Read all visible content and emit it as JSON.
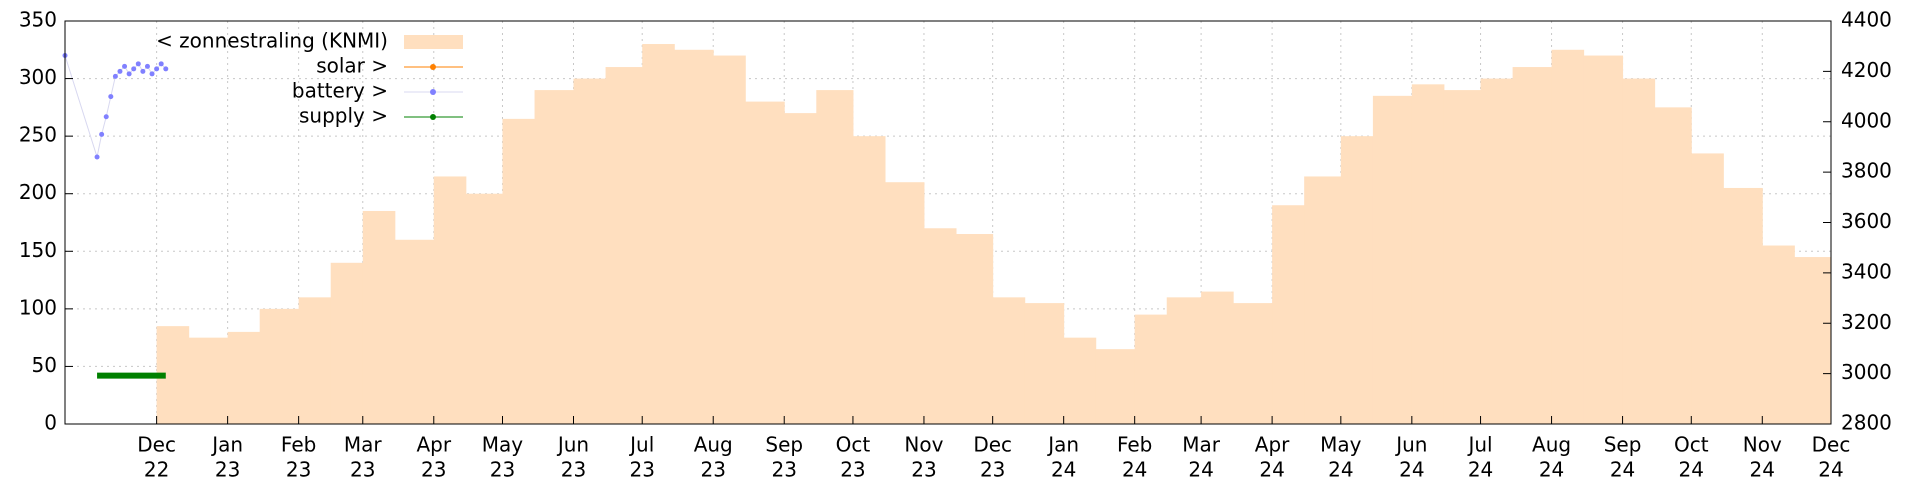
{
  "chart_data": {
    "type": "combo",
    "xlim": [
      "2022-10-22",
      "2024-12-01"
    ],
    "xticks": [
      {
        "value": "2022-12-01",
        "label": [
          "Dec",
          "22"
        ]
      },
      {
        "value": "2023-01-01",
        "label": [
          "Jan",
          "23"
        ]
      },
      {
        "value": "2023-02-01",
        "label": [
          "Feb",
          "23"
        ]
      },
      {
        "value": "2023-03-01",
        "label": [
          "Mar",
          "23"
        ]
      },
      {
        "value": "2023-04-01",
        "label": [
          "Apr",
          "23"
        ]
      },
      {
        "value": "2023-05-01",
        "label": [
          "May",
          "23"
        ]
      },
      {
        "value": "2023-06-01",
        "label": [
          "Jun",
          "23"
        ]
      },
      {
        "value": "2023-07-01",
        "label": [
          "Jul",
          "23"
        ]
      },
      {
        "value": "2023-08-01",
        "label": [
          "Aug",
          "23"
        ]
      },
      {
        "value": "2023-09-01",
        "label": [
          "Sep",
          "23"
        ]
      },
      {
        "value": "2023-10-01",
        "label": [
          "Oct",
          "23"
        ]
      },
      {
        "value": "2023-11-01",
        "label": [
          "Nov",
          "23"
        ]
      },
      {
        "value": "2023-12-01",
        "label": [
          "Dec",
          "23"
        ]
      },
      {
        "value": "2024-01-01",
        "label": [
          "Jan",
          "24"
        ]
      },
      {
        "value": "2024-02-01",
        "label": [
          "Feb",
          "24"
        ]
      },
      {
        "value": "2024-03-01",
        "label": [
          "Mar",
          "24"
        ]
      },
      {
        "value": "2024-04-01",
        "label": [
          "Apr",
          "24"
        ]
      },
      {
        "value": "2024-05-01",
        "label": [
          "May",
          "24"
        ]
      },
      {
        "value": "2024-06-01",
        "label": [
          "Jun",
          "24"
        ]
      },
      {
        "value": "2024-07-01",
        "label": [
          "Jul",
          "24"
        ]
      },
      {
        "value": "2024-08-01",
        "label": [
          "Aug",
          "24"
        ]
      },
      {
        "value": "2024-09-01",
        "label": [
          "Sep",
          "24"
        ]
      },
      {
        "value": "2024-10-01",
        "label": [
          "Oct",
          "24"
        ]
      },
      {
        "value": "2024-11-01",
        "label": [
          "Nov",
          "24"
        ]
      },
      {
        "value": "2024-12-01",
        "label": [
          "Dec",
          "24"
        ]
      }
    ],
    "ylim": [
      0,
      350
    ],
    "yticks": [
      0,
      50,
      100,
      150,
      200,
      250,
      300,
      350
    ],
    "ytick_color": "#ff8000",
    "y2lim": [
      2800,
      4400
    ],
    "y2ticks": [
      2800,
      3000,
      3200,
      3400,
      3600,
      3800,
      4000,
      4200,
      4400
    ],
    "grid": true,
    "series": [
      {
        "name": "< zonnestraling (KNMI)",
        "type": "area",
        "color": "#ffdfbf",
        "x": [
          "2022-12-01",
          "2022-12-15",
          "2023-01-01",
          "2023-01-15",
          "2023-02-01",
          "2023-02-15",
          "2023-03-01",
          "2023-03-15",
          "2023-04-01",
          "2023-04-15",
          "2023-05-01",
          "2023-05-15",
          "2023-06-01",
          "2023-06-15",
          "2023-07-01",
          "2023-07-15",
          "2023-08-01",
          "2023-08-15",
          "2023-09-01",
          "2023-09-15",
          "2023-10-01",
          "2023-10-15",
          "2023-11-01",
          "2023-11-15",
          "2023-12-01",
          "2023-12-15",
          "2024-01-01",
          "2024-01-15",
          "2024-02-01",
          "2024-02-15",
          "2024-03-01",
          "2024-03-15",
          "2024-04-01",
          "2024-04-15",
          "2024-05-01",
          "2024-05-15",
          "2024-06-01",
          "2024-06-15",
          "2024-07-01",
          "2024-07-15",
          "2024-08-01",
          "2024-08-15",
          "2024-09-01",
          "2024-09-15",
          "2024-10-01",
          "2024-10-15",
          "2024-11-01",
          "2024-11-15"
        ],
        "values": [
          85,
          75,
          80,
          100,
          110,
          140,
          185,
          160,
          215,
          200,
          265,
          290,
          300,
          310,
          330,
          325,
          320,
          280,
          270,
          290,
          250,
          210,
          170,
          165,
          110,
          105,
          75,
          65,
          95,
          110,
          115,
          105,
          190,
          215,
          250,
          285,
          295,
          290,
          300,
          310,
          325,
          320,
          300,
          275,
          235,
          205,
          155,
          145
        ]
      },
      {
        "name": "solar >",
        "type": "line",
        "color": "#ff8000",
        "x": [],
        "values": []
      },
      {
        "name": "battery >",
        "type": "scatter",
        "color": "#8080ff",
        "axis": "y2",
        "x": [
          "2022-10-22",
          "2022-11-05",
          "2022-11-07",
          "2022-11-09",
          "2022-11-11",
          "2022-11-13",
          "2022-11-15",
          "2022-11-17",
          "2022-11-19",
          "2022-11-21",
          "2022-11-23",
          "2022-11-25",
          "2022-11-27",
          "2022-11-29",
          "2022-12-01",
          "2022-12-03",
          "2022-12-05"
        ],
        "values": [
          4263,
          3860,
          3950,
          4020,
          4100,
          4180,
          4200,
          4220,
          4190,
          4210,
          4230,
          4200,
          4220,
          4190,
          4210,
          4230,
          4210
        ]
      },
      {
        "name": "supply >",
        "type": "line",
        "color": "#008000",
        "x": [
          "2022-11-05",
          "2022-12-05"
        ],
        "values": [
          42,
          42
        ]
      }
    ]
  }
}
